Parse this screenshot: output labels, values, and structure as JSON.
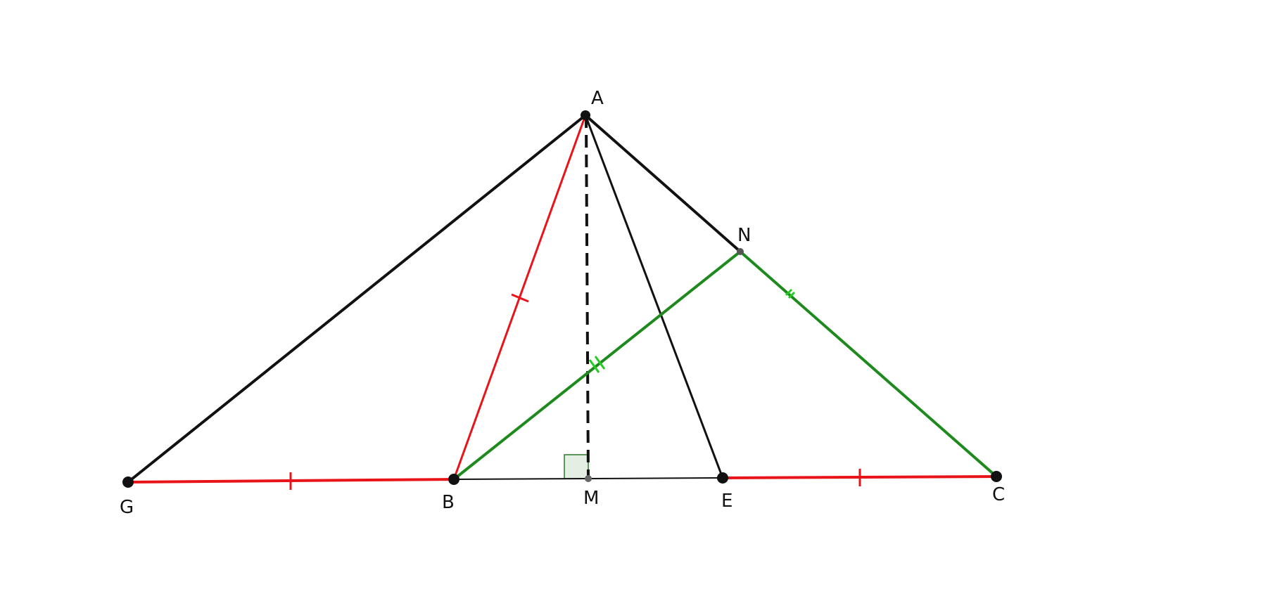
{
  "points": {
    "A": "A",
    "N": "N",
    "G": "G",
    "B": "B",
    "M": "M",
    "E": "E",
    "C": "C"
  }
}
